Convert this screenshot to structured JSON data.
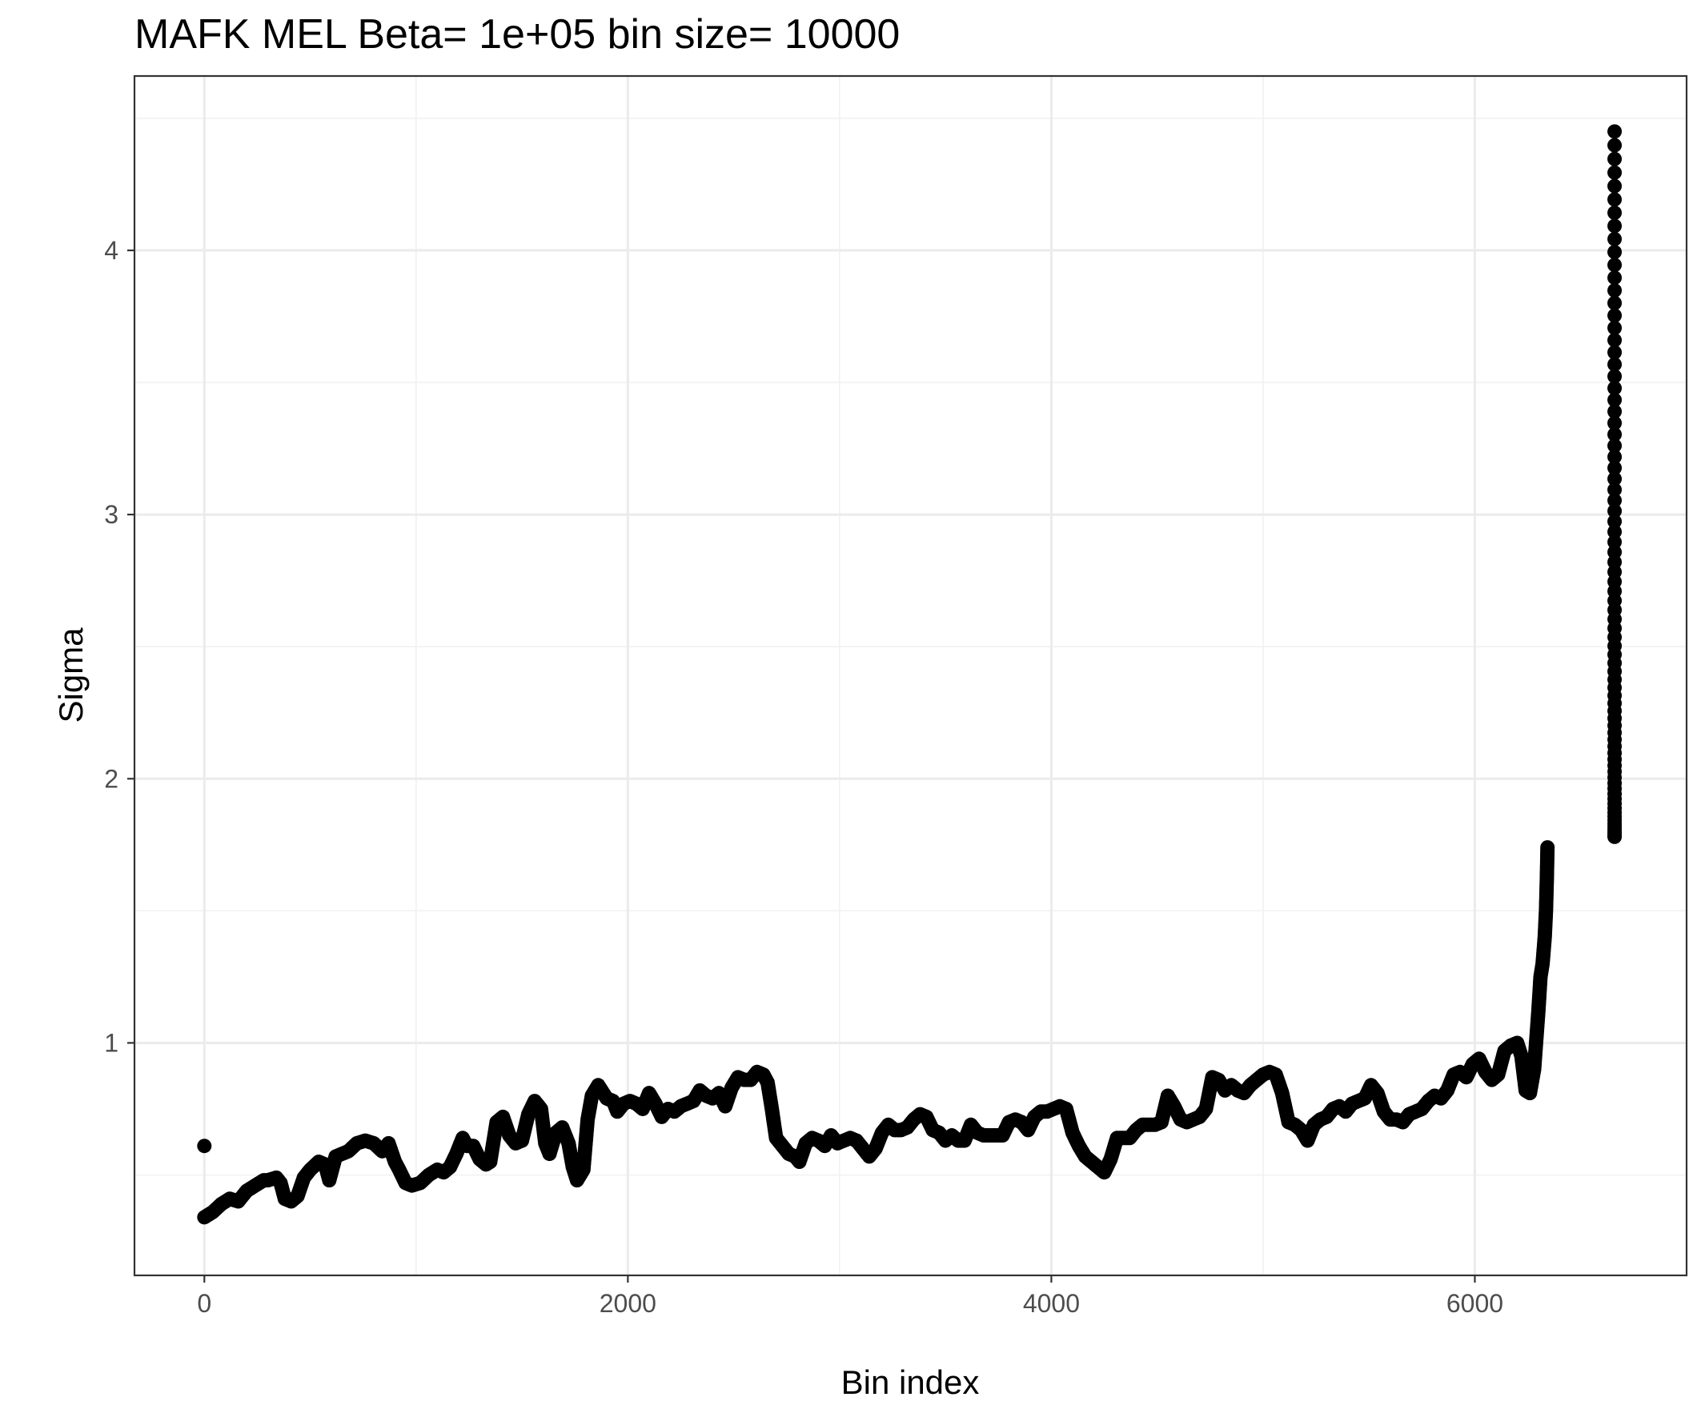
{
  "chart_data": {
    "type": "scatter",
    "title": "MAFK MEL  Beta=  1e+05  bin size=  10000",
    "xlabel": "Bin index",
    "ylabel": "Sigma",
    "xlim": [
      -330,
      7000
    ],
    "ylim": [
      0.12,
      4.66
    ],
    "x_ticks": [
      0,
      2000,
      4000,
      6000
    ],
    "x_tick_labels": [
      "0",
      "2000",
      "4000",
      "6000"
    ],
    "y_ticks": [
      1,
      2,
      3,
      4
    ],
    "y_tick_labels": [
      "1",
      "2",
      "3",
      "4"
    ],
    "grid": true,
    "theme": "bw",
    "point_color": "#000000",
    "outlier_point": {
      "x": 0,
      "y": 0.61
    },
    "trace_points": [
      [
        0,
        0.34
      ],
      [
        40,
        0.36
      ],
      [
        80,
        0.39
      ],
      [
        120,
        0.41
      ],
      [
        160,
        0.4
      ],
      [
        200,
        0.44
      ],
      [
        240,
        0.46
      ],
      [
        280,
        0.48
      ],
      [
        300,
        0.48
      ],
      [
        340,
        0.49
      ],
      [
        360,
        0.47
      ],
      [
        380,
        0.41
      ],
      [
        410,
        0.4
      ],
      [
        440,
        0.42
      ],
      [
        470,
        0.49
      ],
      [
        500,
        0.52
      ],
      [
        540,
        0.55
      ],
      [
        570,
        0.54
      ],
      [
        590,
        0.48
      ],
      [
        620,
        0.57
      ],
      [
        650,
        0.58
      ],
      [
        680,
        0.59
      ],
      [
        720,
        0.62
      ],
      [
        760,
        0.63
      ],
      [
        800,
        0.62
      ],
      [
        840,
        0.59
      ],
      [
        870,
        0.62
      ],
      [
        900,
        0.55
      ],
      [
        920,
        0.52
      ],
      [
        950,
        0.47
      ],
      [
        980,
        0.46
      ],
      [
        1020,
        0.47
      ],
      [
        1060,
        0.5
      ],
      [
        1100,
        0.52
      ],
      [
        1130,
        0.51
      ],
      [
        1160,
        0.53
      ],
      [
        1190,
        0.58
      ],
      [
        1220,
        0.64
      ],
      [
        1240,
        0.61
      ],
      [
        1270,
        0.61
      ],
      [
        1300,
        0.56
      ],
      [
        1330,
        0.54
      ],
      [
        1350,
        0.55
      ],
      [
        1380,
        0.7
      ],
      [
        1410,
        0.72
      ],
      [
        1440,
        0.65
      ],
      [
        1470,
        0.62
      ],
      [
        1500,
        0.63
      ],
      [
        1530,
        0.73
      ],
      [
        1560,
        0.78
      ],
      [
        1590,
        0.75
      ],
      [
        1610,
        0.62
      ],
      [
        1630,
        0.58
      ],
      [
        1660,
        0.66
      ],
      [
        1690,
        0.68
      ],
      [
        1720,
        0.62
      ],
      [
        1740,
        0.53
      ],
      [
        1760,
        0.48
      ],
      [
        1790,
        0.52
      ],
      [
        1810,
        0.71
      ],
      [
        1830,
        0.8
      ],
      [
        1860,
        0.84
      ],
      [
        1900,
        0.79
      ],
      [
        1930,
        0.78
      ],
      [
        1950,
        0.74
      ],
      [
        1980,
        0.77
      ],
      [
        2010,
        0.78
      ],
      [
        2040,
        0.77
      ],
      [
        2070,
        0.75
      ],
      [
        2100,
        0.81
      ],
      [
        2130,
        0.77
      ],
      [
        2160,
        0.72
      ],
      [
        2190,
        0.75
      ],
      [
        2220,
        0.74
      ],
      [
        2250,
        0.76
      ],
      [
        2280,
        0.77
      ],
      [
        2310,
        0.78
      ],
      [
        2340,
        0.82
      ],
      [
        2370,
        0.8
      ],
      [
        2400,
        0.79
      ],
      [
        2430,
        0.81
      ],
      [
        2460,
        0.76
      ],
      [
        2490,
        0.83
      ],
      [
        2520,
        0.87
      ],
      [
        2550,
        0.86
      ],
      [
        2580,
        0.86
      ],
      [
        2610,
        0.89
      ],
      [
        2640,
        0.88
      ],
      [
        2660,
        0.85
      ],
      [
        2680,
        0.75
      ],
      [
        2700,
        0.64
      ],
      [
        2730,
        0.61
      ],
      [
        2760,
        0.58
      ],
      [
        2790,
        0.57
      ],
      [
        2810,
        0.55
      ],
      [
        2840,
        0.62
      ],
      [
        2870,
        0.64
      ],
      [
        2900,
        0.63
      ],
      [
        2930,
        0.61
      ],
      [
        2960,
        0.65
      ],
      [
        2990,
        0.62
      ],
      [
        3020,
        0.63
      ],
      [
        3050,
        0.64
      ],
      [
        3080,
        0.63
      ],
      [
        3110,
        0.6
      ],
      [
        3140,
        0.57
      ],
      [
        3170,
        0.6
      ],
      [
        3200,
        0.66
      ],
      [
        3230,
        0.69
      ],
      [
        3260,
        0.67
      ],
      [
        3290,
        0.67
      ],
      [
        3320,
        0.68
      ],
      [
        3350,
        0.71
      ],
      [
        3380,
        0.73
      ],
      [
        3410,
        0.72
      ],
      [
        3440,
        0.67
      ],
      [
        3470,
        0.66
      ],
      [
        3500,
        0.63
      ],
      [
        3530,
        0.65
      ],
      [
        3560,
        0.63
      ],
      [
        3590,
        0.63
      ],
      [
        3620,
        0.69
      ],
      [
        3650,
        0.66
      ],
      [
        3680,
        0.65
      ],
      [
        3710,
        0.65
      ],
      [
        3740,
        0.65
      ],
      [
        3770,
        0.65
      ],
      [
        3800,
        0.7
      ],
      [
        3830,
        0.71
      ],
      [
        3860,
        0.7
      ],
      [
        3890,
        0.67
      ],
      [
        3920,
        0.72
      ],
      [
        3950,
        0.74
      ],
      [
        3980,
        0.74
      ],
      [
        4010,
        0.75
      ],
      [
        4040,
        0.76
      ],
      [
        4070,
        0.75
      ],
      [
        4100,
        0.66
      ],
      [
        4130,
        0.61
      ],
      [
        4160,
        0.57
      ],
      [
        4190,
        0.55
      ],
      [
        4220,
        0.53
      ],
      [
        4250,
        0.51
      ],
      [
        4280,
        0.56
      ],
      [
        4310,
        0.64
      ],
      [
        4340,
        0.64
      ],
      [
        4370,
        0.64
      ],
      [
        4400,
        0.67
      ],
      [
        4430,
        0.69
      ],
      [
        4460,
        0.69
      ],
      [
        4490,
        0.69
      ],
      [
        4520,
        0.7
      ],
      [
        4550,
        0.8
      ],
      [
        4580,
        0.76
      ],
      [
        4610,
        0.71
      ],
      [
        4640,
        0.7
      ],
      [
        4670,
        0.71
      ],
      [
        4700,
        0.72
      ],
      [
        4730,
        0.75
      ],
      [
        4760,
        0.87
      ],
      [
        4790,
        0.86
      ],
      [
        4820,
        0.82
      ],
      [
        4850,
        0.84
      ],
      [
        4880,
        0.82
      ],
      [
        4910,
        0.81
      ],
      [
        4940,
        0.84
      ],
      [
        4970,
        0.86
      ],
      [
        5000,
        0.88
      ],
      [
        5030,
        0.89
      ],
      [
        5060,
        0.88
      ],
      [
        5090,
        0.81
      ],
      [
        5120,
        0.7
      ],
      [
        5150,
        0.69
      ],
      [
        5180,
        0.67
      ],
      [
        5210,
        0.63
      ],
      [
        5240,
        0.69
      ],
      [
        5270,
        0.71
      ],
      [
        5300,
        0.72
      ],
      [
        5330,
        0.75
      ],
      [
        5360,
        0.76
      ],
      [
        5390,
        0.74
      ],
      [
        5420,
        0.77
      ],
      [
        5450,
        0.78
      ],
      [
        5480,
        0.79
      ],
      [
        5510,
        0.84
      ],
      [
        5540,
        0.81
      ],
      [
        5570,
        0.74
      ],
      [
        5600,
        0.71
      ],
      [
        5630,
        0.71
      ],
      [
        5660,
        0.7
      ],
      [
        5690,
        0.73
      ],
      [
        5720,
        0.74
      ],
      [
        5750,
        0.75
      ],
      [
        5780,
        0.78
      ],
      [
        5810,
        0.8
      ],
      [
        5840,
        0.79
      ],
      [
        5870,
        0.82
      ],
      [
        5900,
        0.88
      ],
      [
        5930,
        0.89
      ],
      [
        5960,
        0.87
      ],
      [
        5990,
        0.92
      ],
      [
        6020,
        0.94
      ],
      [
        6050,
        0.89
      ],
      [
        6080,
        0.86
      ],
      [
        6110,
        0.88
      ],
      [
        6140,
        0.97
      ],
      [
        6170,
        0.99
      ],
      [
        6200,
        1.0
      ],
      [
        6220,
        0.95
      ],
      [
        6240,
        0.82
      ],
      [
        6260,
        0.81
      ],
      [
        6280,
        0.9
      ],
      [
        6300,
        1.12
      ],
      [
        6310,
        1.25
      ],
      [
        6320,
        1.3
      ],
      [
        6330,
        1.4
      ],
      [
        6336,
        1.5
      ],
      [
        6340,
        1.62
      ],
      [
        6343,
        1.74
      ]
    ],
    "tail_x": 6660,
    "tail_y_range": [
      1.78,
      4.45
    ],
    "tail_point_count": 80
  }
}
